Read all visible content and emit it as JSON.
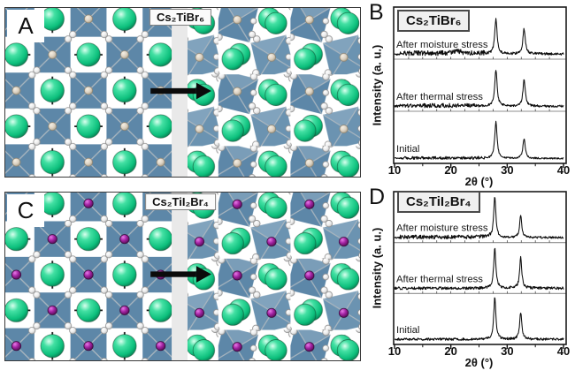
{
  "panels": {
    "A": {
      "letter": "A",
      "formula": "Cs₂TiBr₆",
      "octahedron_center": "tan",
      "shows": "ordered structure transforming to distorted structure"
    },
    "B": {
      "letter": "B",
      "formula": "Cs₂TiBr₆"
    },
    "C": {
      "letter": "C",
      "formula": "Cs₂TiI₂Br₄",
      "octahedron_center": "purple",
      "shows": "ordered structure transforming to distorted structure"
    },
    "D": {
      "letter": "D",
      "formula": "Cs₂TiI₂Br₄"
    }
  },
  "colors": {
    "octahedron_blue": "#5d87a8",
    "octahedron_blue_light": "#6b93b1",
    "cs_green": "#0cbf7c",
    "i_purple": "#8e1b8e",
    "i_purple_dark": "#4a084a",
    "br_sphere": "#ececec",
    "ti_tan": "#dbd1c2",
    "divider_band": "#e9e9e9",
    "trace_black": "#0d0d0d",
    "frame_dark": "#1c1c1c",
    "separator_gray": "#8f8f8f"
  },
  "structure_icons": {
    "large_green_sphere": "Cs atom",
    "blue_square": "Ti-halide octahedron",
    "small_white_sphere": "Br atom",
    "small_purple_sphere": "I atom",
    "black_arrow": "transformation arrow",
    "gray_band": "divider between before/after structures"
  },
  "chart_data": [
    {
      "panel": "B",
      "type": "line",
      "title": "Cs₂TiBr₆",
      "xlabel": "2θ (°)",
      "ylabel": "Intensity (a. u.)",
      "xlim": [
        10,
        40
      ],
      "xticks": [
        10,
        20,
        30,
        40
      ],
      "minor_xticks": [
        15,
        25,
        35
      ],
      "grid": false,
      "legend_position": "labels inside each stacked subpanel",
      "stacking": "three subpanels top to bottom",
      "traces": [
        {
          "label": "After moisture stress",
          "peaks": [
            {
              "two_theta": 28.0,
              "rel_intensity": 0.68,
              "fwhm_deg": 0.5
            },
            {
              "two_theta": 33.0,
              "rel_intensity": 0.48,
              "fwhm_deg": 0.5
            },
            {
              "two_theta": 21.0,
              "rel_intensity": 0.05,
              "fwhm_deg": 1.4
            }
          ],
          "noise_level": 0.035,
          "noise_band": [
            11,
            26
          ],
          "seed": 7
        },
        {
          "label": "After thermal stress",
          "peaks": [
            {
              "two_theta": 28.0,
              "rel_intensity": 0.7,
              "fwhm_deg": 0.5
            },
            {
              "two_theta": 33.0,
              "rel_intensity": 0.5,
              "fwhm_deg": 0.5
            }
          ],
          "noise_level": 0.03,
          "noise_band": [
            11,
            25
          ],
          "seed": 13
        },
        {
          "label": "Initial",
          "peaks": [
            {
              "two_theta": 28.0,
              "rel_intensity": 0.7,
              "fwhm_deg": 0.5
            },
            {
              "two_theta": 33.0,
              "rel_intensity": 0.38,
              "fwhm_deg": 0.5
            }
          ],
          "noise_level": 0.022,
          "noise_band": [
            11,
            26
          ],
          "seed": 21
        }
      ]
    },
    {
      "panel": "D",
      "type": "line",
      "title": "Cs₂TiI₂Br₄",
      "xlabel": "2θ (°)",
      "ylabel": "Intensity (a. u.)",
      "xlim": [
        10,
        40
      ],
      "xticks": [
        10,
        20,
        30,
        40
      ],
      "minor_xticks": [
        15,
        25,
        35
      ],
      "grid": false,
      "legend_position": "labels inside each stacked subpanel",
      "stacking": "three subpanels top to bottom",
      "traces": [
        {
          "label": "After moisture stress",
          "peaks": [
            {
              "two_theta": 27.8,
              "rel_intensity": 0.82,
              "fwhm_deg": 0.45
            },
            {
              "two_theta": 32.4,
              "rel_intensity": 0.43,
              "fwhm_deg": 0.45
            }
          ],
          "noise_level": 0.028,
          "noise_band": [
            11,
            27
          ],
          "seed": 31
        },
        {
          "label": "After thermal stress",
          "peaks": [
            {
              "two_theta": 27.8,
              "rel_intensity": 0.8,
              "fwhm_deg": 0.45
            },
            {
              "two_theta": 32.4,
              "rel_intensity": 0.6,
              "fwhm_deg": 0.45
            }
          ],
          "noise_level": 0.02,
          "noise_band": [
            10,
            40
          ],
          "seed": 37
        },
        {
          "label": "Initial",
          "peaks": [
            {
              "two_theta": 27.8,
              "rel_intensity": 0.82,
              "fwhm_deg": 0.45
            },
            {
              "two_theta": 32.4,
              "rel_intensity": 0.52,
              "fwhm_deg": 0.45
            }
          ],
          "noise_level": 0.018,
          "noise_band": [
            10,
            40
          ],
          "seed": 41
        }
      ]
    }
  ]
}
